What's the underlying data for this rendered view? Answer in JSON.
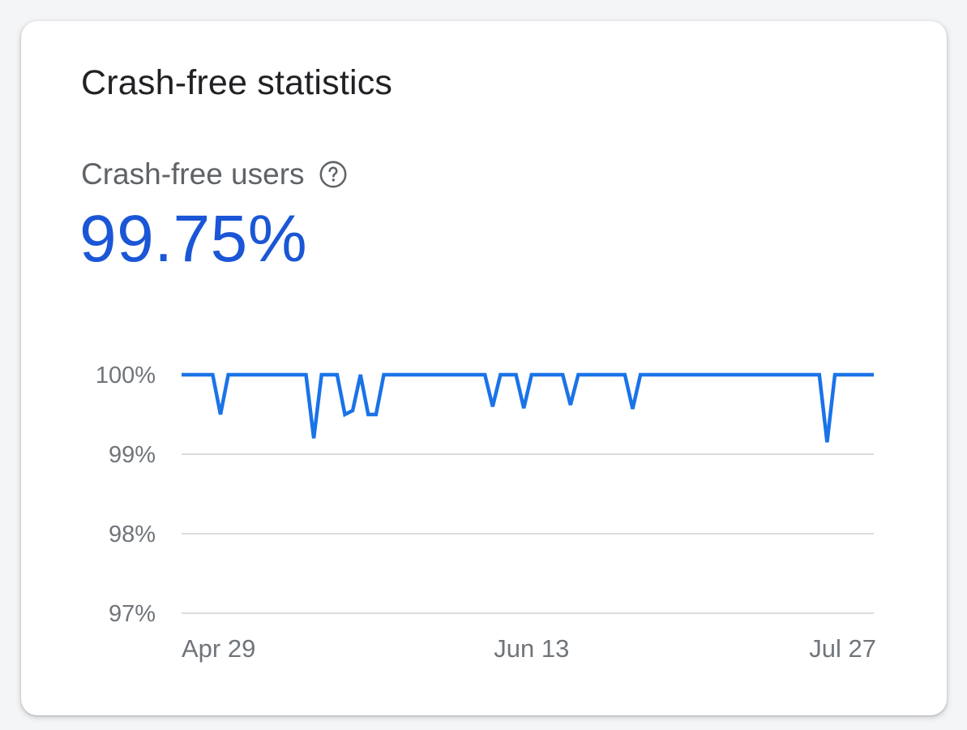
{
  "card": {
    "title": "Crash-free statistics",
    "metric_label": "Crash-free users",
    "help_icon": "help-circle-icon",
    "metric_value": "99.75%",
    "accent_color": "#1a73e8",
    "value_color": "#1a56d6"
  },
  "chart_data": {
    "type": "line",
    "title": "",
    "xlabel": "",
    "ylabel": "",
    "ylim": [
      97,
      100
    ],
    "y_ticks": [
      {
        "value": 100,
        "label": "100%"
      },
      {
        "value": 99,
        "label": "99%"
      },
      {
        "value": 98,
        "label": "98%"
      },
      {
        "value": 97,
        "label": "97%"
      }
    ],
    "x_ticks": [
      {
        "date": "Apr 29",
        "label": "Apr 29"
      },
      {
        "date": "Jun 13",
        "label": "Jun 13"
      },
      {
        "date": "Jul 27",
        "label": "Jul 27"
      }
    ],
    "grid": true,
    "series": [
      {
        "color": "#1a73e8",
        "x": [
          "Apr 29",
          "Apr 30",
          "May 1",
          "May 2",
          "May 3",
          "May 4",
          "May 5",
          "May 6",
          "May 7",
          "May 8",
          "May 9",
          "May 10",
          "May 11",
          "May 12",
          "May 13",
          "May 14",
          "May 15",
          "May 16",
          "May 17",
          "May 18",
          "May 19",
          "May 20",
          "May 21",
          "May 22",
          "May 23",
          "May 24",
          "May 25",
          "May 26",
          "May 27",
          "May 28",
          "May 29",
          "May 30",
          "May 31",
          "Jun 1",
          "Jun 2",
          "Jun 3",
          "Jun 4",
          "Jun 5",
          "Jun 6",
          "Jun 7",
          "Jun 8",
          "Jun 9",
          "Jun 10",
          "Jun 11",
          "Jun 12",
          "Jun 13",
          "Jun 14",
          "Jun 15",
          "Jun 16",
          "Jun 17",
          "Jun 18",
          "Jun 19",
          "Jun 20",
          "Jun 21",
          "Jun 22",
          "Jun 23",
          "Jun 24",
          "Jun 25",
          "Jun 26",
          "Jun 27",
          "Jun 28",
          "Jun 29",
          "Jun 30",
          "Jul 1",
          "Jul 2",
          "Jul 3",
          "Jul 4",
          "Jul 5",
          "Jul 6",
          "Jul 7",
          "Jul 8",
          "Jul 9",
          "Jul 10",
          "Jul 11",
          "Jul 12",
          "Jul 13",
          "Jul 14",
          "Jul 15",
          "Jul 16",
          "Jul 17",
          "Jul 18",
          "Jul 19",
          "Jul 20",
          "Jul 21",
          "Jul 22",
          "Jul 23",
          "Jul 24",
          "Jul 25",
          "Jul 26",
          "Jul 27"
        ],
        "values": [
          100,
          100,
          100,
          100,
          100,
          99.5,
          100,
          100,
          100,
          100,
          100,
          100,
          100,
          100,
          100,
          100,
          100,
          99.2,
          100,
          100,
          100,
          99.5,
          99.55,
          100,
          99.5,
          99.5,
          100,
          100,
          100,
          100,
          100,
          100,
          100,
          100,
          100,
          100,
          100,
          100,
          100,
          100,
          99.6,
          100,
          100,
          100,
          99.58,
          100,
          100,
          100,
          100,
          100,
          99.62,
          100,
          100,
          100,
          100,
          100,
          100,
          100,
          99.57,
          100,
          100,
          100,
          100,
          100,
          100,
          100,
          100,
          100,
          100,
          100,
          100,
          100,
          100,
          100,
          100,
          100,
          100,
          100,
          100,
          100,
          100,
          100,
          100,
          99.15,
          100,
          100,
          100,
          100,
          100,
          100
        ]
      }
    ]
  }
}
